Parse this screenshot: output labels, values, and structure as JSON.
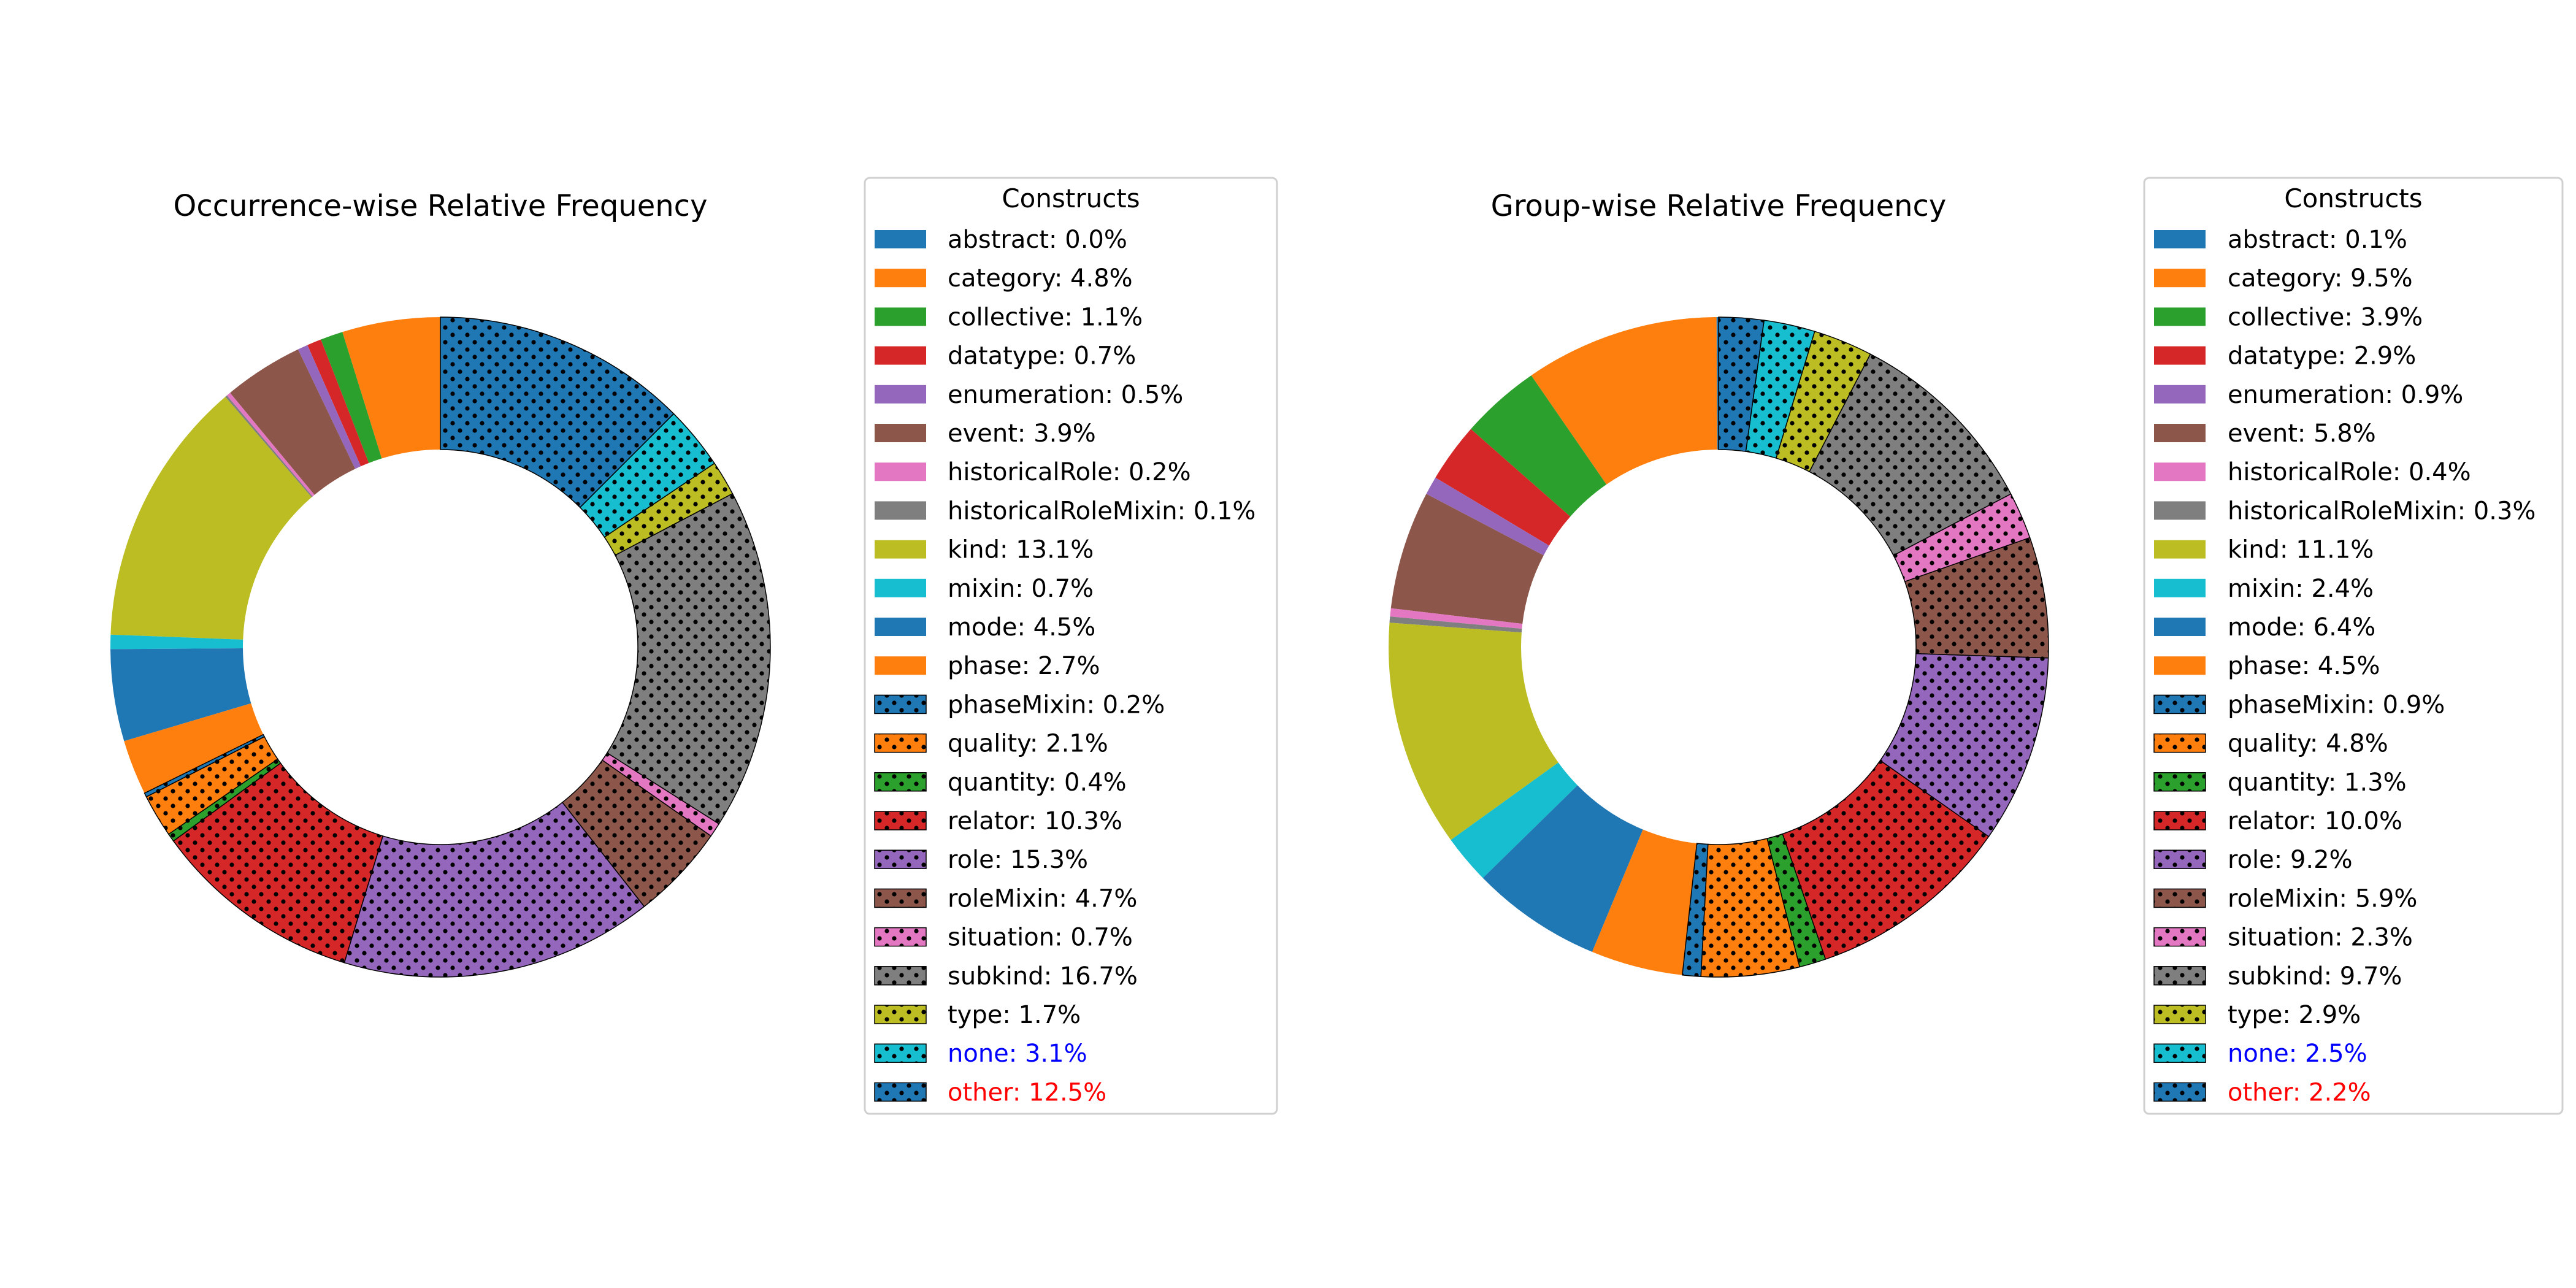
{
  "chart_data": [
    {
      "type": "donut",
      "title": "Occurrence-wise Relative Frequency",
      "legend_title": "Constructs",
      "legend_placement": "right",
      "slices": [
        {
          "name": "abstract",
          "label": "abstract: 0.0%",
          "value": 0.0,
          "color": "#1f77b4",
          "hatch": false
        },
        {
          "name": "category",
          "label": "category: 4.8%",
          "value": 4.8,
          "color": "#ff7f0e",
          "hatch": false
        },
        {
          "name": "collective",
          "label": "collective: 1.1%",
          "value": 1.1,
          "color": "#2ca02c",
          "hatch": false
        },
        {
          "name": "datatype",
          "label": "datatype: 0.7%",
          "value": 0.7,
          "color": "#d62728",
          "hatch": false
        },
        {
          "name": "enumeration",
          "label": "enumeration: 0.5%",
          "value": 0.5,
          "color": "#9467bd",
          "hatch": false
        },
        {
          "name": "event",
          "label": "event: 3.9%",
          "value": 3.9,
          "color": "#8c564b",
          "hatch": false
        },
        {
          "name": "historicalRole",
          "label": "historicalRole: 0.2%",
          "value": 0.2,
          "color": "#e377c2",
          "hatch": false
        },
        {
          "name": "historicalRoleMixin",
          "label": "historicalRoleMixin: 0.1%",
          "value": 0.1,
          "color": "#7f7f7f",
          "hatch": false
        },
        {
          "name": "kind",
          "label": "kind: 13.1%",
          "value": 13.1,
          "color": "#bcbd22",
          "hatch": false
        },
        {
          "name": "mixin",
          "label": "mixin: 0.7%",
          "value": 0.7,
          "color": "#17becf",
          "hatch": false
        },
        {
          "name": "mode",
          "label": "mode: 4.5%",
          "value": 4.5,
          "color": "#1f77b4",
          "hatch": false
        },
        {
          "name": "phase",
          "label": "phase: 2.7%",
          "value": 2.7,
          "color": "#ff7f0e",
          "hatch": false
        },
        {
          "name": "phaseMixin",
          "label": "phaseMixin: 0.2%",
          "value": 0.2,
          "color": "#1f77b4",
          "hatch": true
        },
        {
          "name": "quality",
          "label": "quality: 2.1%",
          "value": 2.1,
          "color": "#ff7f0e",
          "hatch": true
        },
        {
          "name": "quantity",
          "label": "quantity: 0.4%",
          "value": 0.4,
          "color": "#2ca02c",
          "hatch": true
        },
        {
          "name": "relator",
          "label": "relator: 10.3%",
          "value": 10.3,
          "color": "#d62728",
          "hatch": true
        },
        {
          "name": "role",
          "label": "role: 15.3%",
          "value": 15.3,
          "color": "#9467bd",
          "hatch": true
        },
        {
          "name": "roleMixin",
          "label": "roleMixin: 4.7%",
          "value": 4.7,
          "color": "#8c564b",
          "hatch": true
        },
        {
          "name": "situation",
          "label": "situation: 0.7%",
          "value": 0.7,
          "color": "#e377c2",
          "hatch": true
        },
        {
          "name": "subkind",
          "label": "subkind: 16.7%",
          "value": 16.7,
          "color": "#7f7f7f",
          "hatch": true
        },
        {
          "name": "type",
          "label": "type: 1.7%",
          "value": 1.7,
          "color": "#bcbd22",
          "hatch": true
        },
        {
          "name": "none",
          "label": "none: 3.1%",
          "value": 3.1,
          "color": "#17becf",
          "hatch": true,
          "label_color": "#0000ff"
        },
        {
          "name": "other",
          "label": "other: 12.5%",
          "value": 12.5,
          "color": "#1f77b4",
          "hatch": true,
          "label_color": "#ff0000"
        }
      ]
    },
    {
      "type": "donut",
      "title": "Group-wise Relative Frequency",
      "legend_title": "Constructs",
      "legend_placement": "right",
      "slices": [
        {
          "name": "abstract",
          "label": "abstract: 0.1%",
          "value": 0.1,
          "color": "#1f77b4",
          "hatch": false
        },
        {
          "name": "category",
          "label": "category: 9.5%",
          "value": 9.5,
          "color": "#ff7f0e",
          "hatch": false
        },
        {
          "name": "collective",
          "label": "collective: 3.9%",
          "value": 3.9,
          "color": "#2ca02c",
          "hatch": false
        },
        {
          "name": "datatype",
          "label": "datatype: 2.9%",
          "value": 2.9,
          "color": "#d62728",
          "hatch": false
        },
        {
          "name": "enumeration",
          "label": "enumeration: 0.9%",
          "value": 0.9,
          "color": "#9467bd",
          "hatch": false
        },
        {
          "name": "event",
          "label": "event: 5.8%",
          "value": 5.8,
          "color": "#8c564b",
          "hatch": false
        },
        {
          "name": "historicalRole",
          "label": "historicalRole: 0.4%",
          "value": 0.4,
          "color": "#e377c2",
          "hatch": false
        },
        {
          "name": "historicalRoleMixin",
          "label": "historicalRoleMixin: 0.3%",
          "value": 0.3,
          "color": "#7f7f7f",
          "hatch": false
        },
        {
          "name": "kind",
          "label": "kind: 11.1%",
          "value": 11.1,
          "color": "#bcbd22",
          "hatch": false
        },
        {
          "name": "mixin",
          "label": "mixin: 2.4%",
          "value": 2.4,
          "color": "#17becf",
          "hatch": false
        },
        {
          "name": "mode",
          "label": "mode: 6.4%",
          "value": 6.4,
          "color": "#1f77b4",
          "hatch": false
        },
        {
          "name": "phase",
          "label": "phase: 4.5%",
          "value": 4.5,
          "color": "#ff7f0e",
          "hatch": false
        },
        {
          "name": "phaseMixin",
          "label": "phaseMixin: 0.9%",
          "value": 0.9,
          "color": "#1f77b4",
          "hatch": true
        },
        {
          "name": "quality",
          "label": "quality: 4.8%",
          "value": 4.8,
          "color": "#ff7f0e",
          "hatch": true
        },
        {
          "name": "quantity",
          "label": "quantity: 1.3%",
          "value": 1.3,
          "color": "#2ca02c",
          "hatch": true
        },
        {
          "name": "relator",
          "label": "relator: 10.0%",
          "value": 10.0,
          "color": "#d62728",
          "hatch": true
        },
        {
          "name": "role",
          "label": "role: 9.2%",
          "value": 9.2,
          "color": "#9467bd",
          "hatch": true
        },
        {
          "name": "roleMixin",
          "label": "roleMixin: 5.9%",
          "value": 5.9,
          "color": "#8c564b",
          "hatch": true
        },
        {
          "name": "situation",
          "label": "situation: 2.3%",
          "value": 2.3,
          "color": "#e377c2",
          "hatch": true
        },
        {
          "name": "subkind",
          "label": "subkind: 9.7%",
          "value": 9.7,
          "color": "#7f7f7f",
          "hatch": true
        },
        {
          "name": "type",
          "label": "type: 2.9%",
          "value": 2.9,
          "color": "#bcbd22",
          "hatch": true
        },
        {
          "name": "none",
          "label": "none: 2.5%",
          "value": 2.5,
          "color": "#17becf",
          "hatch": true,
          "label_color": "#0000ff"
        },
        {
          "name": "other",
          "label": "other: 2.2%",
          "value": 2.2,
          "color": "#1f77b4",
          "hatch": true,
          "label_color": "#ff0000"
        }
      ]
    }
  ]
}
